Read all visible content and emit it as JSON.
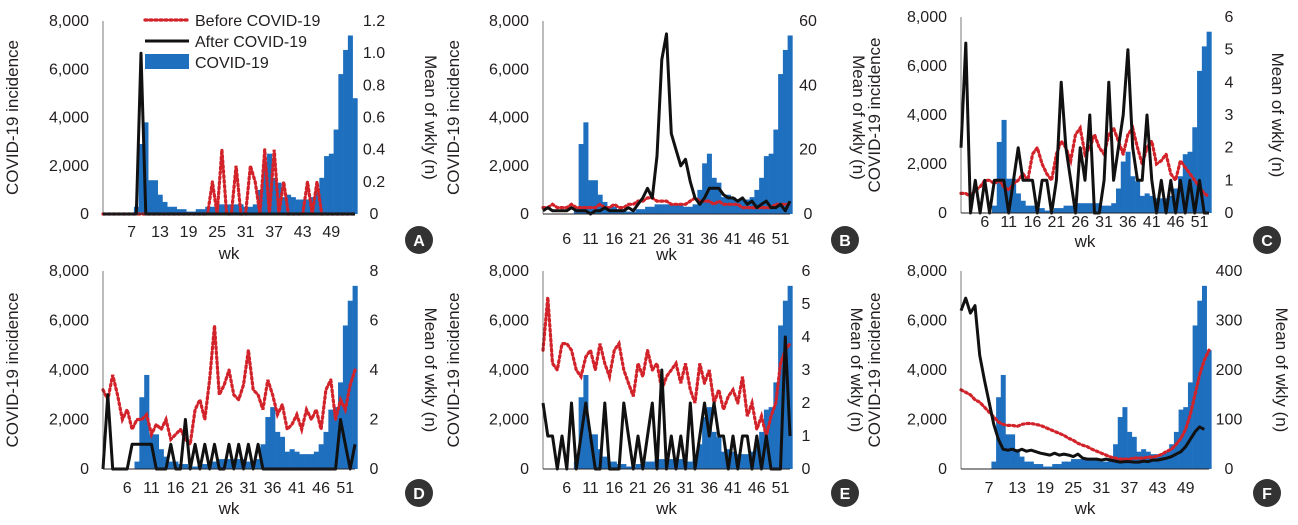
{
  "colors": {
    "bars": "#1f6fbf",
    "before": "#d2232a",
    "after": "#111111",
    "badge": "#333333",
    "axis": "#231f20"
  },
  "legend": {
    "items": [
      {
        "label": "Before COVID-19",
        "style": "dotted",
        "color": "#d2232a"
      },
      {
        "label": "After COVID-19",
        "style": "solid",
        "color": "#111111"
      },
      {
        "label": "COVID-19",
        "style": "bar",
        "color": "#1f6fbf"
      }
    ]
  },
  "covid_weekly": [
    0,
    0,
    0,
    0,
    0,
    0,
    0,
    300,
    2900,
    3800,
    1400,
    1400,
    800,
    500,
    300,
    300,
    200,
    200,
    100,
    100,
    200,
    200,
    300,
    300,
    400,
    400,
    400,
    400,
    400,
    400,
    300,
    300,
    400,
    1000,
    2100,
    2500,
    1500,
    1300,
    700,
    800,
    700,
    600,
    600,
    600,
    700,
    1000,
    1500,
    2400,
    2500,
    3500,
    5800,
    6800,
    7400,
    4800
  ],
  "chart_data": [
    {
      "panel": "A",
      "type": "bar+line",
      "xlabel": "wk",
      "ylabel": "COVID-19 incidence",
      "y2label": "Mean of wkly (n)",
      "x_ticks": [
        "7",
        "13",
        "19",
        "25",
        "31",
        "37",
        "43",
        "49"
      ],
      "y_ticks": [
        "0",
        "2,000",
        "4,000",
        "6,000",
        "8,000"
      ],
      "y2_ticks": [
        "0",
        "0.2",
        "0.4",
        "0.6",
        "0.8",
        "1.0",
        "1.2"
      ],
      "ylim": [
        0,
        8000
      ],
      "y2lim": [
        0,
        1.2
      ],
      "xlim": [
        1,
        54
      ],
      "series": [
        {
          "name": "Before COVID-19",
          "axis": "y2",
          "values": [
            0,
            0,
            0,
            0,
            0,
            0,
            0,
            0,
            0,
            0,
            0,
            0,
            0,
            0,
            0,
            0,
            0,
            0,
            0,
            0,
            0,
            0,
            0,
            0.2,
            0,
            0.4,
            0,
            0,
            0.3,
            0,
            0,
            0.3,
            0.2,
            0,
            0.4,
            0,
            0.4,
            0,
            0.2,
            0,
            0,
            0,
            0,
            0.2,
            0,
            0.2,
            0,
            0,
            0,
            0,
            0,
            0,
            0,
            0
          ]
        },
        {
          "name": "After COVID-19",
          "axis": "y2",
          "values": [
            0,
            0,
            0,
            0,
            0,
            0,
            0,
            0,
            1.0,
            0,
            0,
            0,
            0,
            0,
            0,
            0,
            0,
            0,
            0,
            0,
            0,
            0,
            0,
            0,
            0,
            0,
            0,
            0,
            0,
            0,
            0,
            0,
            0,
            0,
            0,
            0,
            0,
            0,
            0,
            0,
            0,
            0,
            0,
            0,
            0,
            0,
            0,
            0,
            0,
            0,
            0,
            0,
            0,
            0
          ]
        },
        {
          "name": "COVID-19",
          "axis": "y",
          "ref": "covid_weekly"
        }
      ]
    },
    {
      "panel": "B",
      "type": "bar+line",
      "xlabel": "wk",
      "ylabel": "COVID-19 incidence",
      "y2label": "Mean of wkly (n)",
      "x_ticks": [
        "6",
        "11",
        "16",
        "21",
        "26",
        "31",
        "36",
        "41",
        "46",
        "51"
      ],
      "y_ticks": [
        "0",
        "2,000",
        "4,000",
        "6,000",
        "8,000"
      ],
      "y2_ticks": [
        "0",
        "20",
        "40",
        "60"
      ],
      "ylim": [
        0,
        8000
      ],
      "y2lim": [
        0,
        60
      ],
      "xlim": [
        1,
        53
      ],
      "series": [
        {
          "name": "Before COVID-19",
          "axis": "y2",
          "values": [
            2,
            2,
            3,
            2,
            2,
            2,
            3,
            2,
            2,
            2,
            2,
            2,
            3,
            2,
            2,
            3,
            2,
            2,
            3,
            3,
            4,
            4,
            5,
            5,
            4,
            4,
            4,
            3,
            3,
            3,
            3,
            4,
            5,
            4,
            4,
            4,
            3,
            4,
            3,
            3,
            3,
            3,
            2,
            2,
            2,
            2,
            2,
            2,
            2,
            3,
            3,
            3,
            3
          ]
        },
        {
          "name": "After COVID-19",
          "axis": "y2",
          "values": [
            1,
            2,
            1,
            1,
            1,
            1,
            2,
            1,
            1,
            1,
            0,
            1,
            1,
            2,
            1,
            1,
            1,
            1,
            2,
            1,
            3,
            5,
            8,
            5,
            18,
            48,
            56,
            25,
            20,
            15,
            17,
            10,
            5,
            3,
            5,
            8,
            8,
            8,
            6,
            5,
            5,
            4,
            5,
            3,
            4,
            2,
            3,
            4,
            2,
            2,
            3,
            1,
            4
          ]
        },
        {
          "name": "COVID-19",
          "axis": "y",
          "ref": "covid_weekly"
        }
      ]
    },
    {
      "panel": "C",
      "type": "bar+line",
      "xlabel": "wk",
      "ylabel": "COVID-19 incidence",
      "y2label": "Mean of wkly (n)",
      "x_ticks": [
        "6",
        "11",
        "16",
        "21",
        "26",
        "31",
        "36",
        "41",
        "46",
        "51"
      ],
      "y_ticks": [
        "0",
        "2,000",
        "4,000",
        "6,000",
        "8,000"
      ],
      "y2_ticks": [
        "0",
        "1",
        "2",
        "3",
        "4",
        "5",
        "6"
      ],
      "ylim": [
        0,
        8000
      ],
      "y2lim": [
        0,
        6
      ],
      "xlim": [
        1,
        53
      ],
      "series": [
        {
          "name": "Before COVID-19",
          "axis": "y2",
          "values": [
            0.6,
            0.6,
            0.5,
            0.7,
            0.8,
            1.0,
            1.0,
            0.9,
            1.0,
            0.8,
            0.7,
            0.9,
            1.0,
            1.2,
            1.0,
            1.8,
            2.0,
            1.5,
            1.2,
            1.0,
            1.8,
            2.2,
            2.0,
            1.6,
            2.4,
            2.6,
            1.8,
            2.0,
            2.4,
            2.0,
            1.8,
            2.4,
            2.6,
            2.2,
            1.8,
            2.4,
            2.6,
            2.0,
            1.5,
            2.0,
            2.2,
            1.5,
            1.6,
            1.8,
            1.2,
            1.0,
            1.6,
            1.4,
            1.2,
            1.0,
            0.8,
            0.6,
            0.5
          ]
        },
        {
          "name": "After COVID-19",
          "axis": "y2",
          "values": [
            2,
            5.2,
            0,
            1,
            0,
            1,
            0,
            1,
            1,
            1,
            0,
            1,
            2,
            1,
            1,
            1,
            0,
            1,
            1,
            0,
            1,
            4,
            2,
            1,
            0,
            2,
            1,
            3,
            0,
            0,
            1,
            4,
            1,
            2,
            3,
            5,
            2,
            1,
            1,
            3,
            1,
            0,
            1,
            0,
            1,
            0,
            1,
            0,
            1,
            0,
            1,
            0,
            0
          ]
        },
        {
          "name": "COVID-19",
          "axis": "y",
          "ref": "covid_weekly"
        }
      ]
    },
    {
      "panel": "D",
      "type": "bar+line",
      "xlabel": "wk",
      "ylabel": "COVID-19 incidence",
      "y2label": "Mean of wkly (n)",
      "x_ticks": [
        "6",
        "11",
        "16",
        "21",
        "26",
        "31",
        "36",
        "41",
        "46",
        "51"
      ],
      "y_ticks": [
        "0",
        "2,000",
        "4,000",
        "6,000",
        "8,000"
      ],
      "y2_ticks": [
        "0",
        "2",
        "4",
        "6",
        "8"
      ],
      "ylim": [
        0,
        8000
      ],
      "y2lim": [
        0,
        8
      ],
      "xlim": [
        1,
        53
      ],
      "series": [
        {
          "name": "Before COVID-19",
          "axis": "y2",
          "values": [
            3.2,
            2.8,
            3.8,
            3.0,
            2.0,
            2.4,
            1.6,
            2.0,
            2.0,
            2.2,
            1.4,
            1.8,
            1.6,
            2.0,
            1.2,
            1.4,
            1.6,
            1.2,
            1.0,
            2.4,
            2.8,
            2.0,
            3.6,
            5.8,
            3.0,
            3.4,
            4.0,
            3.0,
            2.8,
            3.4,
            4.8,
            3.2,
            3.0,
            2.4,
            3.6,
            3.0,
            2.2,
            2.6,
            1.6,
            1.8,
            2.2,
            1.6,
            2.4,
            2.0,
            2.4,
            1.6,
            3.2,
            3.6,
            2.0,
            2.8,
            2.4,
            3.4,
            4.0
          ]
        },
        {
          "name": "After COVID-19",
          "axis": "y2",
          "values": [
            0,
            3,
            0,
            0,
            0,
            0,
            1,
            1,
            1,
            1,
            1,
            0,
            0,
            0,
            1,
            0,
            0,
            2,
            0,
            1,
            0,
            1,
            0,
            1,
            0,
            0,
            1,
            0,
            1,
            0,
            1,
            0,
            1,
            0,
            0,
            0,
            0,
            0,
            0,
            0,
            0,
            0,
            0,
            0,
            0,
            0,
            0,
            0,
            0,
            2,
            1,
            0,
            1
          ]
        },
        {
          "name": "COVID-19",
          "axis": "y",
          "ref": "covid_weekly"
        }
      ]
    },
    {
      "panel": "E",
      "type": "bar+line",
      "xlabel": "wk",
      "ylabel": "COVID-19 incidence",
      "y2label": "Mean of wkly (n)",
      "x_ticks": [
        "6",
        "11",
        "16",
        "21",
        "26",
        "31",
        "36",
        "41",
        "46",
        "51"
      ],
      "y_ticks": [
        "0",
        "2,000",
        "4,000",
        "6,000",
        "8,000"
      ],
      "y2_ticks": [
        "0",
        "1",
        "2",
        "3",
        "4",
        "5",
        "6"
      ],
      "ylim": [
        0,
        8000
      ],
      "y2lim": [
        0,
        6
      ],
      "xlim": [
        1,
        53
      ],
      "series": [
        {
          "name": "Before COVID-19",
          "axis": "y2",
          "values": [
            3.6,
            5.2,
            3.2,
            3.0,
            3.8,
            3.8,
            3.6,
            3.0,
            2.8,
            3.4,
            3.6,
            3.0,
            3.8,
            3.2,
            2.8,
            3.6,
            3.8,
            3.0,
            2.6,
            2.2,
            3.2,
            2.8,
            3.6,
            3.0,
            3.2,
            2.4,
            2.8,
            3.0,
            3.2,
            2.6,
            3.2,
            2.4,
            2.0,
            3.2,
            2.6,
            3.0,
            2.0,
            2.4,
            1.8,
            2.2,
            2.4,
            2.0,
            2.8,
            1.6,
            2.0,
            1.2,
            1.6,
            1.0,
            1.6,
            2.0,
            3.2,
            3.6,
            3.8
          ]
        },
        {
          "name": "After COVID-19",
          "axis": "y2",
          "values": [
            2,
            1,
            1,
            0,
            1,
            0,
            2,
            0,
            1,
            2,
            1,
            0,
            0,
            2,
            0,
            0,
            0,
            2,
            1,
            0,
            1,
            0,
            1,
            2,
            0,
            3,
            0,
            1,
            0,
            1,
            0,
            2,
            0,
            1,
            2,
            1,
            2,
            1,
            1,
            0,
            1,
            0,
            1,
            1,
            0,
            1,
            0,
            1,
            0,
            0,
            0,
            4,
            1
          ]
        },
        {
          "name": "COVID-19",
          "axis": "y",
          "ref": "covid_weekly"
        }
      ]
    },
    {
      "panel": "F",
      "type": "bar+line",
      "xlabel": "wk",
      "ylabel": "COVID-19 incidence",
      "y2label": "Mean of wkly (n)",
      "x_ticks": [
        "7",
        "13",
        "19",
        "25",
        "31",
        "37",
        "43",
        "49"
      ],
      "y_ticks": [
        "0",
        "2,000",
        "4,000",
        "6,000",
        "8,000"
      ],
      "y2_ticks": [
        "0",
        "100",
        "200",
        "300",
        "400"
      ],
      "ylim": [
        0,
        8000
      ],
      "y2lim": [
        0,
        400
      ],
      "xlim": [
        1,
        54
      ],
      "series": [
        {
          "name": "Before COVID-19",
          "axis": "y2",
          "values": [
            160,
            155,
            150,
            140,
            135,
            125,
            115,
            105,
            95,
            90,
            88,
            88,
            86,
            90,
            92,
            92,
            90,
            88,
            84,
            80,
            76,
            72,
            68,
            62,
            58,
            52,
            48,
            45,
            40,
            36,
            32,
            28,
            24,
            22,
            20,
            20,
            20,
            22,
            22,
            22,
            24,
            24,
            26,
            30,
            36,
            40,
            50,
            62,
            80,
            110,
            150,
            190,
            220,
            240
          ]
        },
        {
          "name": "After COVID-19",
          "axis": "y2",
          "values": [
            320,
            345,
            315,
            330,
            230,
            180,
            135,
            90,
            60,
            40,
            38,
            40,
            36,
            40,
            36,
            38,
            35,
            32,
            30,
            28,
            32,
            28,
            30,
            28,
            25,
            30,
            22,
            20,
            20,
            20,
            18,
            20,
            18,
            16,
            14,
            15,
            15,
            14,
            14,
            16,
            15,
            18,
            18,
            20,
            22,
            25,
            30,
            35,
            45,
            60,
            75,
            85,
            80
          ]
        },
        {
          "name": "COVID-19",
          "axis": "y",
          "ref": "covid_weekly"
        }
      ]
    }
  ]
}
